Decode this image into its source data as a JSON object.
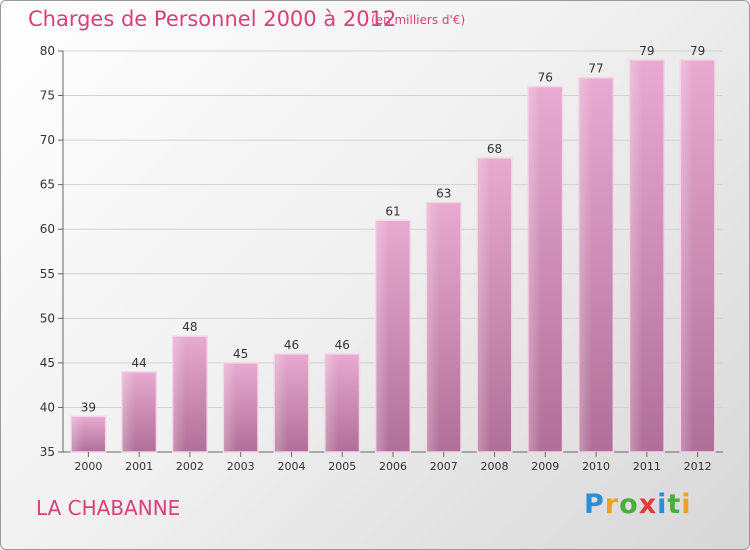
{
  "header": {
    "title": "Charges de Personnel 2000 à 2012",
    "unit": "(en milliers d'€)"
  },
  "footer": {
    "commune": "LA CHABANNE",
    "logo": {
      "letters": [
        "P",
        "r",
        "o",
        "x",
        "i",
        "t",
        "i"
      ],
      "colors": [
        "#2a8fd6",
        "#f0a020",
        "#4aae3c",
        "#e23b3b",
        "#2a8fd6",
        "#4aae3c",
        "#f0a020"
      ]
    }
  },
  "chart_data": {
    "type": "bar",
    "title": "Charges de Personnel 2000 à 2012",
    "subtitle": "(en milliers d'€)",
    "categories": [
      "2000",
      "2001",
      "2002",
      "2003",
      "2004",
      "2005",
      "2006",
      "2007",
      "2008",
      "2009",
      "2010",
      "2011",
      "2012"
    ],
    "values": [
      39,
      44,
      48,
      45,
      46,
      46,
      61,
      63,
      68,
      76,
      77,
      79,
      79
    ],
    "data_labels": [
      "39",
      "44",
      "48",
      "45",
      "46",
      "46",
      "61",
      "63",
      "68",
      "76",
      "77",
      "79",
      "79"
    ],
    "ylim": [
      35,
      80
    ],
    "yticks": [
      35,
      40,
      45,
      50,
      55,
      60,
      65,
      70,
      75,
      80
    ],
    "ytick_labels": [
      "35",
      "40",
      "45",
      "50",
      "55",
      "60",
      "65",
      "70",
      "75",
      "80"
    ],
    "grid": true,
    "bar_color": "#d98bb6"
  }
}
